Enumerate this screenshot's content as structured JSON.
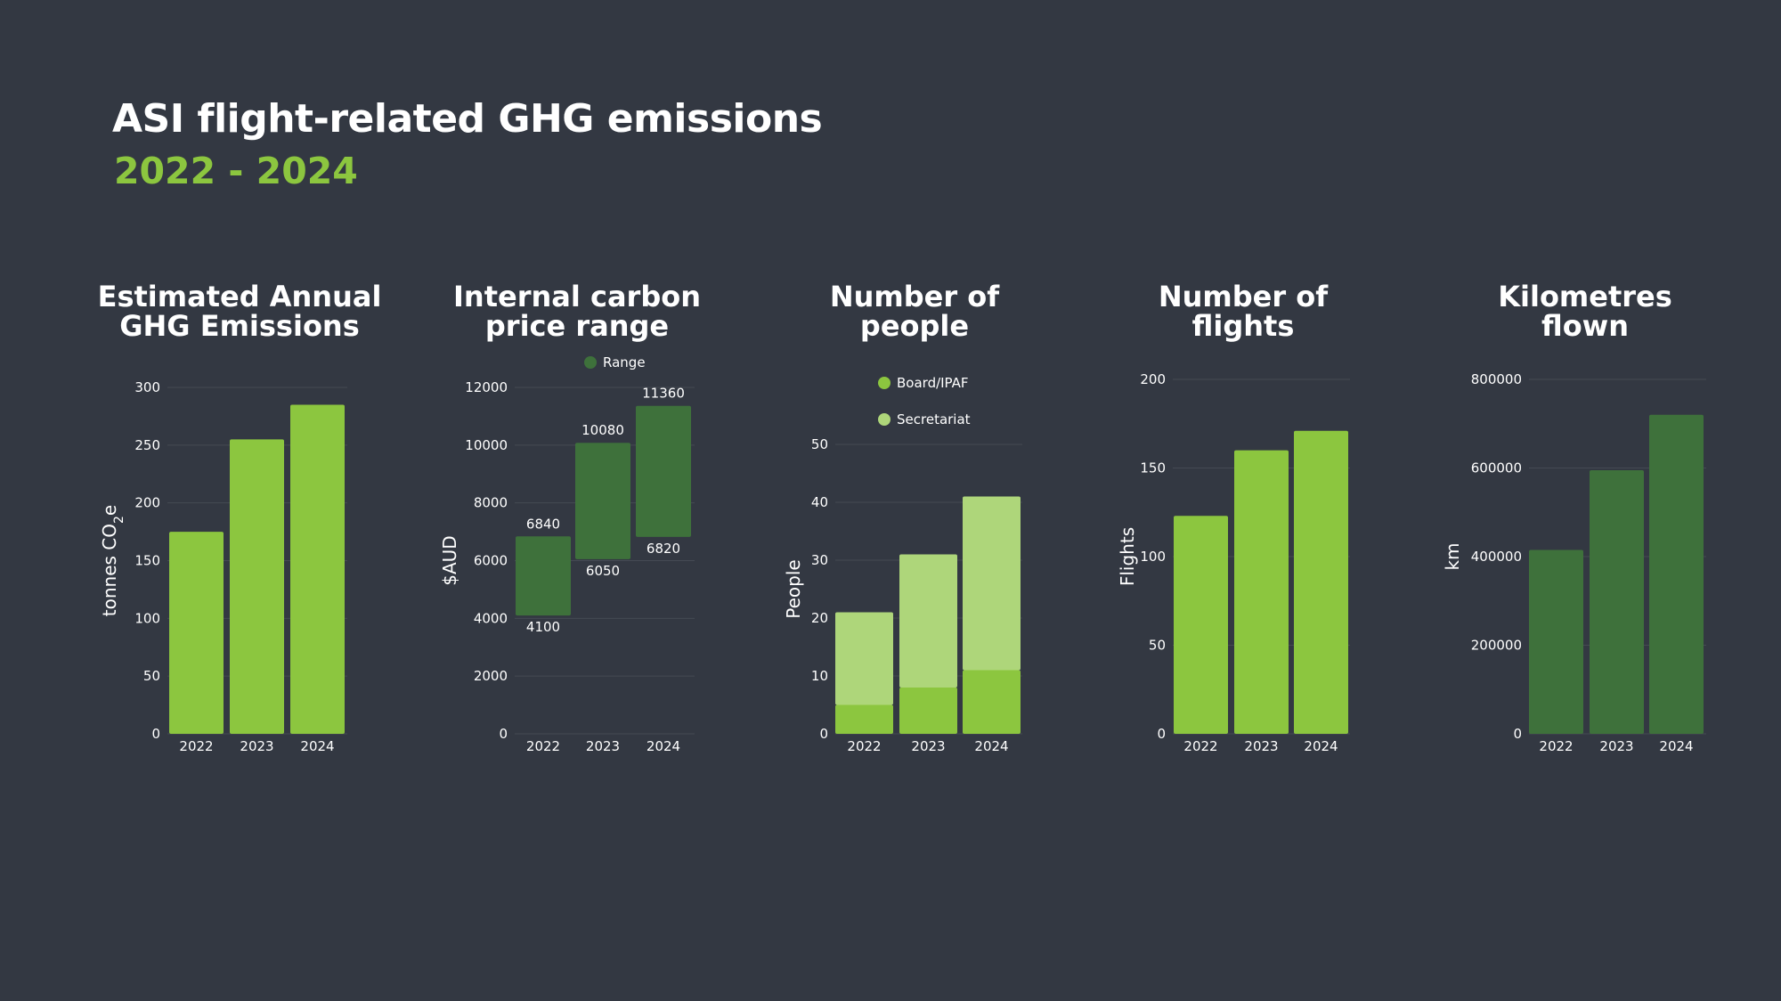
{
  "page": {
    "title": "ASI flight-related GHG emissions",
    "subtitle": "2022 - 2024"
  },
  "colors": {
    "background": "#333842",
    "light_green": "#8cc63f",
    "pale_green": "#aed67a",
    "dark_green": "#3e713b",
    "grid": "#454a53"
  },
  "chart_data": [
    {
      "type": "bar",
      "title_line1": "Estimated Annual",
      "title_line2": "GHG Emissions",
      "categories": [
        "2022",
        "2023",
        "2024"
      ],
      "values": [
        175,
        255,
        285
      ],
      "ylabel": "tonnes CO",
      "ylabel_sub": "2",
      "ylabel_tail": "e",
      "ylim": [
        0,
        300
      ],
      "yticks": [
        0,
        50,
        100,
        150,
        200,
        250,
        300
      ]
    },
    {
      "type": "floating-bar",
      "title_line1": "Internal carbon",
      "title_line2": "price range",
      "categories": [
        "2022",
        "2023",
        "2024"
      ],
      "low": [
        4100,
        6050,
        6820
      ],
      "high": [
        6840,
        10080,
        11360
      ],
      "legend": "Range",
      "ylabel": "$AUD",
      "ylim": [
        0,
        12000
      ],
      "yticks": [
        0,
        2000,
        4000,
        6000,
        8000,
        10000,
        12000
      ]
    },
    {
      "type": "stacked-bar",
      "title_line1": "Number of",
      "title_line2": "people",
      "categories": [
        "2022",
        "2023",
        "2024"
      ],
      "series": [
        {
          "name": "Board/IPAF",
          "values": [
            5,
            8,
            11
          ]
        },
        {
          "name": "Secretariat",
          "values": [
            16,
            23,
            30
          ]
        }
      ],
      "ylabel": "People",
      "ylim": [
        0,
        50
      ],
      "yticks": [
        0,
        10,
        20,
        30,
        40,
        50
      ]
    },
    {
      "type": "bar",
      "title_line1": "Number of",
      "title_line2": "flights",
      "categories": [
        "2022",
        "2023",
        "2024"
      ],
      "values": [
        123,
        160,
        171
      ],
      "ylabel": "Flights",
      "ylim": [
        0,
        200
      ],
      "yticks": [
        0,
        50,
        100,
        150,
        200
      ]
    },
    {
      "type": "bar",
      "title_line1": "Kilometres",
      "title_line2": "flown",
      "categories": [
        "2022",
        "2023",
        "2024"
      ],
      "values": [
        415000,
        595000,
        720000
      ],
      "ylabel": "km",
      "ylim": [
        0,
        800000
      ],
      "yticks": [
        0,
        200000,
        400000,
        600000,
        800000
      ]
    }
  ]
}
